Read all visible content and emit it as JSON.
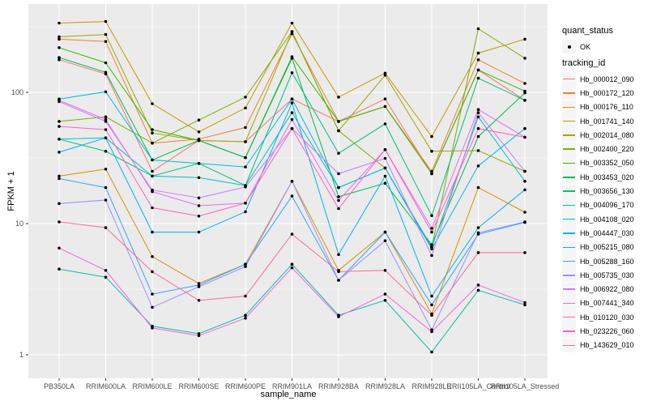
{
  "figure": {
    "panel_background": "#EBEBEB",
    "gridline_color": "#FFFFFF",
    "tick_color": "#333333",
    "tick_label_color": "#4D4D4D",
    "point_color": "#000000"
  },
  "legend": {
    "quant_status": {
      "title": "quant_status",
      "items": [
        {
          "label": "OK",
          "marker": "point-icon",
          "color": "#000000"
        }
      ]
    },
    "tracking_id": {
      "title": "tracking_id"
    }
  },
  "chart_data": {
    "type": "line",
    "title": "",
    "xlabel": "sample_name",
    "ylabel": "FPKM + 1",
    "y_scale": "log10",
    "ylim": [
      1,
      400
    ],
    "y_ticks": [
      "1",
      "10",
      "100"
    ],
    "grid": true,
    "legend_position": "right",
    "categories": [
      "PB350LA",
      "RRIM600LA",
      "RRIM600LE",
      "RRIM600SE",
      "RRIM600PE",
      "RRIM901LA",
      "RRIM928BA",
      "RRIM928LA",
      "RRIM928LE",
      "RRII105LA_Control",
      "RRII105LA_Stressed"
    ],
    "series": [
      {
        "name": "Hb_000012_090",
        "color": "#F8766D",
        "values": [
          177,
          138,
          25,
          43,
          42,
          89,
          60,
          89,
          24,
          148,
          87
        ]
      },
      {
        "name": "Hb_000172_120",
        "color": "#EA8331",
        "values": [
          254,
          244,
          41,
          44,
          54,
          280,
          60,
          78,
          25,
          177,
          117
        ]
      },
      {
        "name": "Hb_000176_110",
        "color": "#D89000",
        "values": [
          23,
          26,
          5.6,
          3.5,
          4.9,
          21,
          4.4,
          8.6,
          2.05,
          18.8,
          12.2
        ]
      },
      {
        "name": "Hb_001741_140",
        "color": "#C09B00",
        "values": [
          337,
          347,
          82,
          50,
          76,
          337,
          92,
          140,
          46,
          199,
          254
        ]
      },
      {
        "name": "Hb_002014_080",
        "color": "#A3A500",
        "values": [
          265,
          276,
          49,
          43,
          42,
          290,
          51,
          135,
          35.6,
          36,
          25
        ]
      },
      {
        "name": "Hb_002400_220",
        "color": "#7CAE00",
        "values": [
          60,
          65,
          41,
          61.5,
          92,
          290,
          51,
          26.5,
          6.6,
          305,
          182
        ]
      },
      {
        "name": "Hb_003352_050",
        "color": "#39B600",
        "values": [
          219,
          168,
          52,
          43,
          31.8,
          187,
          60,
          78,
          24,
          148,
          102
        ]
      },
      {
        "name": "Hb_003453_020",
        "color": "#00BB4E",
        "values": [
          184,
          142,
          30.5,
          43,
          31.8,
          182,
          16,
          20.3,
          6.9,
          46,
          99
        ]
      },
      {
        "name": "Hb_003656_130",
        "color": "#00BF7D",
        "values": [
          44,
          35.6,
          23,
          28.7,
          19.5,
          141,
          34.3,
          57.5,
          11.5,
          128,
          87
        ]
      },
      {
        "name": "Hb_004096_170",
        "color": "#00C1A3",
        "values": [
          4.5,
          3.9,
          1.65,
          1.45,
          2.0,
          4.9,
          2.0,
          2.6,
          1.05,
          3.1,
          2.4
        ]
      },
      {
        "name": "Hb_004108_020",
        "color": "#00BFC4",
        "values": [
          44,
          45,
          23,
          22.4,
          19.5,
          70,
          18.8,
          26.5,
          6.6,
          65,
          21
        ]
      },
      {
        "name": "Hb_004447_030",
        "color": "#00BAE0",
        "values": [
          89,
          101,
          30.5,
          28.7,
          27,
          89,
          18.8,
          26.5,
          6.4,
          27.5,
          53
        ]
      },
      {
        "name": "Hb_005215_080",
        "color": "#00B0F6",
        "values": [
          35,
          45,
          8.6,
          8.6,
          12.3,
          83,
          5.8,
          23,
          2.8,
          9.3,
          18.1
        ]
      },
      {
        "name": "Hb_005288_160",
        "color": "#35A2FF",
        "values": [
          22,
          18.8,
          2.9,
          3.4,
          4.9,
          16.2,
          3.7,
          8.6,
          2.4,
          8.3,
          10.2
        ]
      },
      {
        "name": "Hb_005735_030",
        "color": "#9590FF",
        "values": [
          14.2,
          15.1,
          2.3,
          3.3,
          4.7,
          21,
          3.7,
          7.4,
          1.55,
          8.5,
          10.3
        ]
      },
      {
        "name": "Hb_006922_080",
        "color": "#C77CFF",
        "values": [
          85,
          60,
          18,
          15.7,
          19,
          53,
          24,
          31.4,
          5.7,
          70,
          25
        ]
      },
      {
        "name": "Hb_007441_340",
        "color": "#E76BF3",
        "values": [
          87,
          62,
          17.5,
          13.7,
          14.3,
          62,
          15,
          36.6,
          9.2,
          74,
          45.5
        ]
      },
      {
        "name": "Hb_010120_030",
        "color": "#FA62DB",
        "values": [
          6.5,
          4.4,
          1.6,
          1.4,
          1.9,
          4.6,
          1.95,
          2.9,
          1.5,
          3.4,
          2.5
        ]
      },
      {
        "name": "Hb_023226_060",
        "color": "#FF62BC",
        "values": [
          55,
          52,
          13.2,
          11.4,
          14.3,
          53,
          13,
          36.6,
          8.6,
          53,
          45.5
        ]
      },
      {
        "name": "Hb_143629_010",
        "color": "#FF6A98",
        "values": [
          10.3,
          9.3,
          4.3,
          2.6,
          2.8,
          8.3,
          4.3,
          4.4,
          2.0,
          6.0,
          6.0
        ]
      }
    ]
  }
}
